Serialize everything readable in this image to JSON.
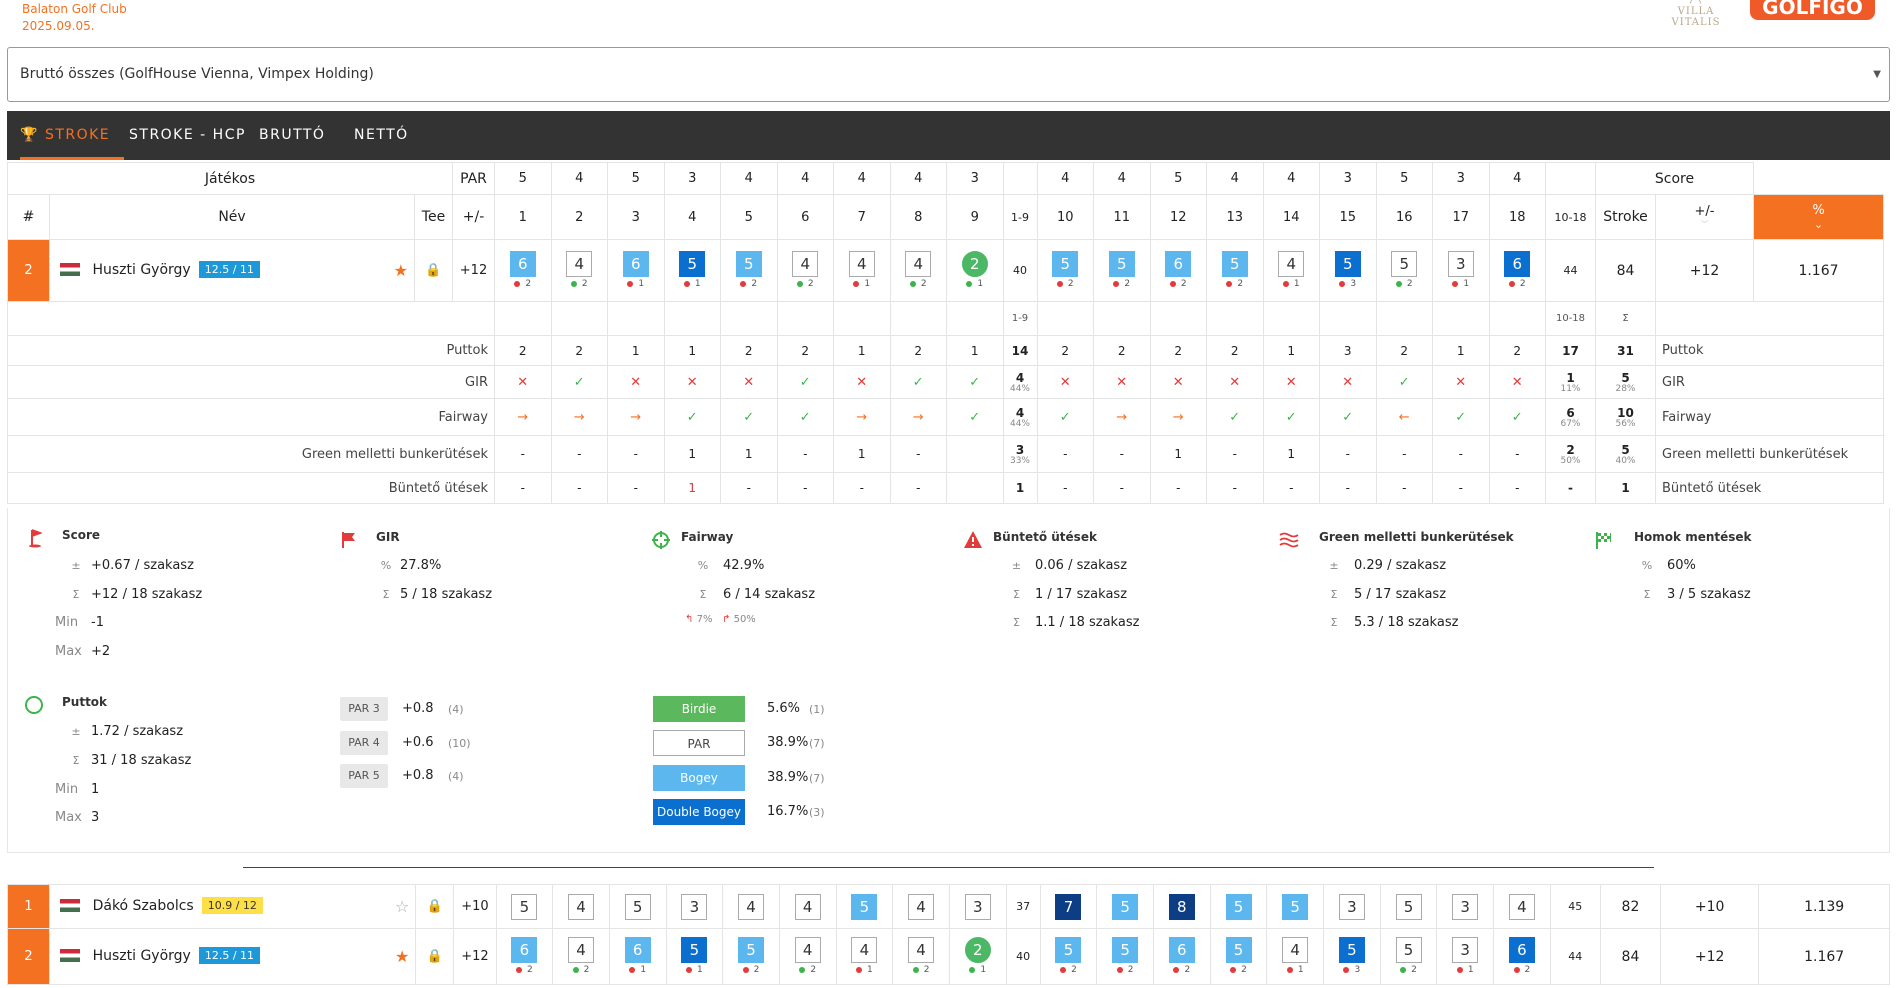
{
  "header": {
    "club": "Balaton Golf Club",
    "date": "2025.09.05.",
    "villa_logo": "VILLA VITALIS",
    "golfigo_logo": "GOLFIGO"
  },
  "select": {
    "value": "Bruttó összes (GolfHouse Vienna, Vimpex Holding)"
  },
  "tabs": [
    "Stroke",
    "Stroke - HCP",
    "Bruttó",
    "Nettó"
  ],
  "table": {
    "hdr": {
      "jatekos": "Játékos",
      "par": "PAR",
      "score": "Score",
      "num": "#",
      "nev": "Név",
      "tee": "Tee",
      "pm": "+/-",
      "f9": "1-9",
      "b9": "10-18",
      "stroke": "Stroke",
      "pm2": "+/-",
      "pct": "%"
    },
    "pars": [
      "5",
      "4",
      "5",
      "3",
      "4",
      "4",
      "4",
      "4",
      "3",
      "4",
      "4",
      "5",
      "4",
      "4",
      "3",
      "5",
      "3",
      "4"
    ],
    "holes": [
      "1",
      "2",
      "3",
      "4",
      "5",
      "6",
      "7",
      "8",
      "9",
      "10",
      "11",
      "12",
      "13",
      "14",
      "15",
      "16",
      "17",
      "18"
    ]
  },
  "players": [
    {
      "pos": "1",
      "name": "Dákó Szabolcs",
      "hcp": "10.9 / 12",
      "pm": "+10",
      "scores": [
        "5",
        "4",
        "5",
        "3",
        "4",
        "4",
        "5",
        "4",
        "3",
        "7",
        "5",
        "8",
        "5",
        "5",
        "3",
        "5",
        "3",
        "4"
      ],
      "types": [
        "",
        "",
        "",
        "",
        "",
        "",
        "b1",
        "",
        "",
        "b3",
        "b1",
        "b3",
        "b1",
        "b1",
        "",
        "",
        "",
        ""
      ],
      "f9": "37",
      "b9": "45",
      "stroke": "82",
      "pm2": "+10",
      "pct": "1.139"
    },
    {
      "pos": "2",
      "name": "Huszti György",
      "hcp": "12.5 / 11",
      "pm": "+12",
      "scores": [
        "6",
        "4",
        "6",
        "5",
        "5",
        "4",
        "4",
        "4",
        "2",
        "5",
        "5",
        "6",
        "5",
        "4",
        "5",
        "5",
        "3",
        "6"
      ],
      "types": [
        "b1",
        "",
        "b1",
        "b2",
        "b1",
        "",
        "",
        "",
        "birdie",
        "b1",
        "b1",
        "b1",
        "b1",
        "",
        "b2",
        "",
        "",
        "b2"
      ],
      "putts": [
        "2",
        "2",
        "1",
        "1",
        "2",
        "2",
        "1",
        "2",
        "1",
        "2",
        "2",
        "2",
        "2",
        "1",
        "3",
        "2",
        "1",
        "2"
      ],
      "puttc": [
        "red",
        "green",
        "red",
        "red",
        "red",
        "green",
        "red",
        "green",
        "green",
        "red",
        "red",
        "red",
        "red",
        "red",
        "red",
        "green",
        "red",
        "red"
      ],
      "f9": "40",
      "b9": "44",
      "stroke": "84",
      "pm2": "+12",
      "pct": "1.167"
    }
  ],
  "stats": {
    "sigma": "Σ",
    "rows": [
      {
        "label": "Puttok",
        "f": [
          "2",
          "2",
          "1",
          "1",
          "2",
          "2",
          "1",
          "2",
          "1"
        ],
        "f9": "14",
        "f9p": "",
        "b": [
          "2",
          "2",
          "2",
          "2",
          "1",
          "3",
          "2",
          "1",
          "2"
        ],
        "b9": "17",
        "b9p": "",
        "tot": "31",
        "totp": ""
      },
      {
        "label": "GIR",
        "f": [
          "x",
          "ok",
          "x",
          "x",
          "x",
          "ok",
          "x",
          "ok",
          "ok"
        ],
        "f9": "4",
        "f9p": "44%",
        "b": [
          "x",
          "x",
          "x",
          "x",
          "x",
          "x",
          "ok",
          "x",
          "x"
        ],
        "b9": "1",
        "b9p": "11%",
        "tot": "5",
        "totp": "28%"
      },
      {
        "label": "Fairway",
        "f": [
          "ar",
          "ar",
          "ar",
          "ok",
          "ok",
          "ok",
          "ar",
          "ar",
          "ok"
        ],
        "f9": "4",
        "f9p": "44%",
        "b": [
          "ok",
          "ar",
          "ar",
          "ok",
          "ok",
          "ok",
          "al",
          "ok",
          "ok"
        ],
        "b9": "6",
        "b9p": "67%",
        "tot": "10",
        "totp": "56%"
      },
      {
        "label": "Green melletti bunkerütések",
        "f": [
          "-",
          "-",
          "-",
          "1",
          "1",
          "-",
          "1",
          "-",
          ""
        ],
        "f9": "3",
        "f9p": "33%",
        "b": [
          "-",
          "-",
          "1",
          "-",
          "1",
          "-",
          "-",
          "-",
          "-"
        ],
        "b9": "2",
        "b9p": "50%",
        "tot": "5",
        "totp": "40%"
      },
      {
        "label": "Büntető ütések",
        "f": [
          "-",
          "-",
          "-",
          "1",
          "-",
          "-",
          "-",
          "-",
          ""
        ],
        "f9": "1",
        "f9p": "",
        "b": [
          "-",
          "-",
          "-",
          "-",
          "-",
          "-",
          "-",
          "-",
          "-"
        ],
        "b9": "-",
        "b9p": "",
        "tot": "1",
        "totp": ""
      }
    ]
  },
  "summary": {
    "score": {
      "title": "Score",
      "r1": "+0.67 / szakasz",
      "r2": "+12 / 18 szakasz",
      "min_l": "Min",
      "min": "-1",
      "max_l": "Max",
      "max": "+2"
    },
    "gir": {
      "title": "GIR",
      "r1": "27.8%",
      "r2": "5 / 18 szakasz"
    },
    "fairway": {
      "title": "Fairway",
      "r1": "42.9%",
      "r2": "6 / 14 szakasz",
      "l": "7%",
      "r": "50%"
    },
    "buntet": {
      "title": "Büntető ütések",
      "r1": "0.06 / szakasz",
      "r2": "1 / 17 szakasz",
      "r3": "1.1 / 18 szakasz"
    },
    "bunker": {
      "title": "Green melletti bunkerütések",
      "r1": "0.29 / szakasz",
      "r2": "5 / 17 szakasz",
      "r3": "5.3 / 18 szakasz"
    },
    "homok": {
      "title": "Homok mentések",
      "r1": "60%",
      "r2": "3 / 5 szakasz"
    },
    "puttok": {
      "title": "Puttok",
      "r1": "1.72 / szakasz",
      "r2": "31 / 18 szakasz",
      "min_l": "Min",
      "min": "1",
      "max_l": "Max",
      "max": "3"
    },
    "pars": [
      {
        "l": "PAR 3",
        "v": "+0.8",
        "c": "(4)"
      },
      {
        "l": "PAR 4",
        "v": "+0.6",
        "c": "(10)"
      },
      {
        "l": "PAR 5",
        "v": "+0.8",
        "c": "(4)"
      }
    ],
    "legend": [
      {
        "l": "Birdie",
        "v": "5.6%",
        "c": "(1)",
        "color": "#5cb85c"
      },
      {
        "l": "PAR",
        "v": "38.9%",
        "c": "(7)",
        "color": "#ffffff"
      },
      {
        "l": "Bogey",
        "v": "38.9%",
        "c": "(7)",
        "color": "#5bb7ee"
      },
      {
        "l": "Double Bogey",
        "v": "16.7%",
        "c": "(3)",
        "color": "#0a6fce"
      }
    ]
  }
}
